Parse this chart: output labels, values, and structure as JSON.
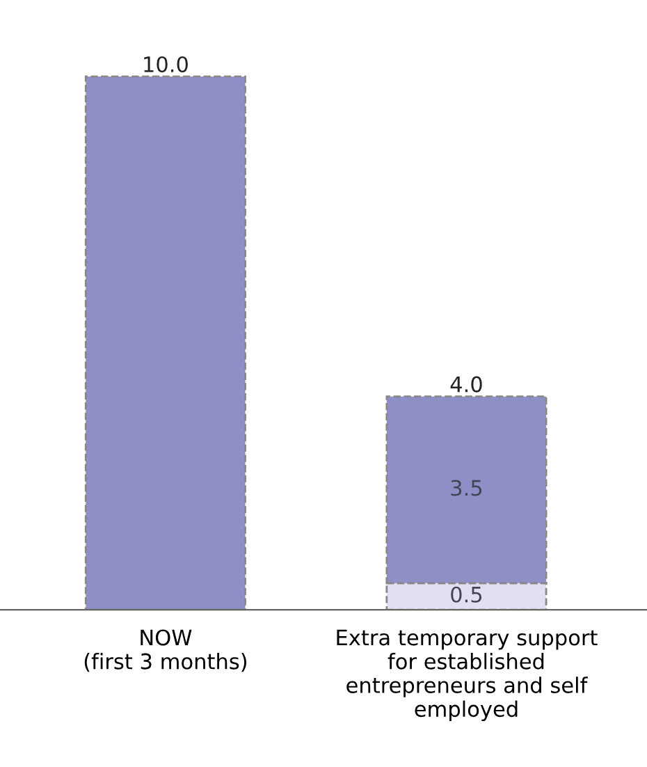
{
  "chart_data": {
    "type": "bar",
    "stacked": true,
    "categories": [
      "NOW\n(first 3 months)",
      "Extra temporary support\nfor established\nentrepreneurs and self\nemployed"
    ],
    "series": [
      {
        "color": "#e0e0f2",
        "values": [
          null,
          0.5
        ],
        "value_labels": [
          null,
          "0.5"
        ]
      },
      {
        "color": "#8f8fc8",
        "values": [
          10.0,
          3.5
        ],
        "value_labels": [
          null,
          "3.5"
        ]
      }
    ],
    "totals": [
      "10.0",
      "4.0"
    ],
    "line_style": "dashed",
    "grid": false,
    "legend": false
  }
}
